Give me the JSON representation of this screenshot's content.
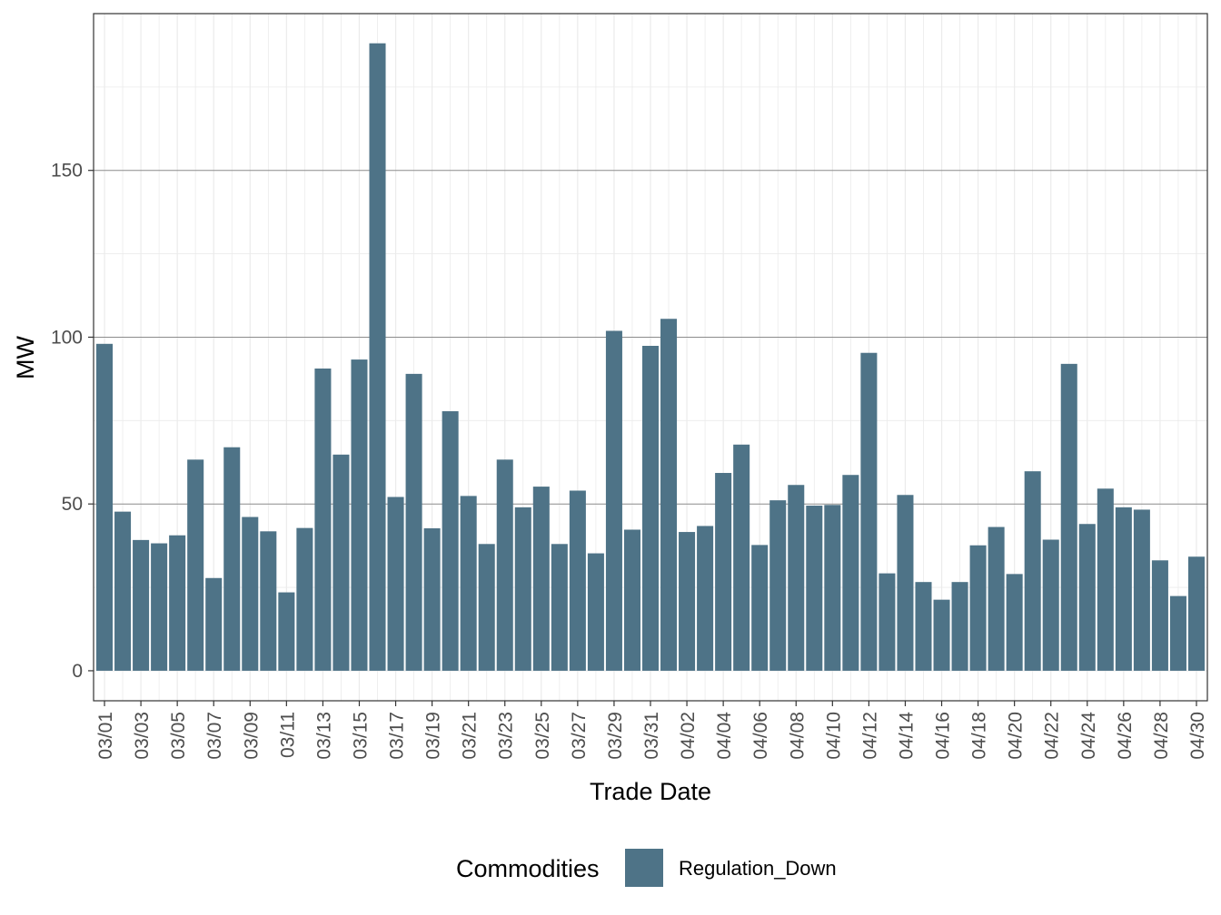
{
  "chart_data": {
    "type": "bar",
    "xlabel": "Trade Date",
    "ylabel": "MW",
    "ylim": [
      -9,
      197
    ],
    "yticks": [
      0,
      50,
      100,
      150
    ],
    "grid": true,
    "legend_position": "bottom",
    "legend_title": "Commodities",
    "categories": [
      "03/01",
      "03/02",
      "03/03",
      "03/04",
      "03/05",
      "03/06",
      "03/07",
      "03/08",
      "03/09",
      "03/10",
      "03/11",
      "03/12",
      "03/13",
      "03/14",
      "03/15",
      "03/16",
      "03/17",
      "03/18",
      "03/19",
      "03/20",
      "03/21",
      "03/22",
      "03/23",
      "03/24",
      "03/25",
      "03/26",
      "03/27",
      "03/28",
      "03/29",
      "03/30",
      "03/31",
      "04/01",
      "04/02",
      "04/03",
      "04/04",
      "04/05",
      "04/06",
      "04/07",
      "04/08",
      "04/09",
      "04/10",
      "04/11",
      "04/12",
      "04/13",
      "04/14",
      "04/15",
      "04/16",
      "04/17",
      "04/18",
      "04/19",
      "04/20",
      "04/21",
      "04/22",
      "04/23",
      "04/24",
      "04/25",
      "04/26",
      "04/27",
      "04/28",
      "04/29",
      "04/30"
    ],
    "tick_labels": [
      "03/01",
      "03/03",
      "03/05",
      "03/07",
      "03/09",
      "03/11",
      "03/13",
      "03/15",
      "03/17",
      "03/19",
      "03/21",
      "03/23",
      "03/25",
      "03/27",
      "03/29",
      "03/31",
      "04/02",
      "04/04",
      "04/06",
      "04/08",
      "04/10",
      "04/12",
      "04/14",
      "04/16",
      "04/18",
      "04/20",
      "04/22",
      "04/24",
      "04/26",
      "04/28",
      "04/30"
    ],
    "series": [
      {
        "name": "Regulation_Down",
        "color": "#4e7387",
        "values": [
          98,
          47.7,
          39.2,
          38.2,
          40.6,
          63.3,
          27.8,
          67,
          46.1,
          41.8,
          23.5,
          42.8,
          90.6,
          64.8,
          93.3,
          188.1,
          52.1,
          89,
          42.7,
          77.8,
          52.4,
          38,
          63.3,
          49,
          55.2,
          38,
          54,
          35.2,
          101.9,
          42.3,
          97.4,
          105.5,
          41.6,
          43.4,
          59.3,
          67.8,
          37.7,
          51.1,
          55.7,
          49.5,
          49.7,
          58.7,
          95.3,
          29.2,
          52.7,
          26.6,
          21.3,
          26.6,
          37.6,
          43.1,
          29,
          59.8,
          39.3,
          92,
          44,
          54.6,
          49,
          48.3,
          33.1,
          22.4,
          34.2
        ]
      }
    ]
  }
}
